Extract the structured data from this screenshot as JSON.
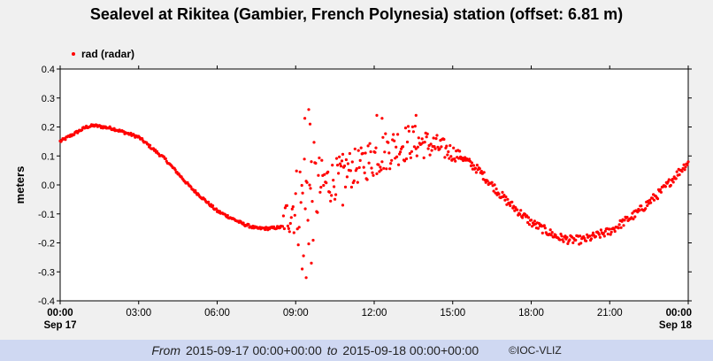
{
  "chart_data": {
    "type": "scatter",
    "title": "Sealevel at Rikitea (Gambier, French Polynesia) station (offset: 6.81 m)",
    "ylabel": "meters",
    "ylim": [
      -0.4,
      0.4
    ],
    "yticks": [
      "0.4",
      "0.3",
      "0.2",
      "0.1",
      "0.0",
      "-0.1",
      "-0.2",
      "-0.3",
      "-0.4"
    ],
    "xlim_hours": [
      0,
      24
    ],
    "xticks": [
      {
        "h": 0,
        "label": "00:00",
        "date": "Sep 17",
        "bold": true
      },
      {
        "h": 3,
        "label": "03:00"
      },
      {
        "h": 6,
        "label": "06:00"
      },
      {
        "h": 9,
        "label": "09:00"
      },
      {
        "h": 12,
        "label": "12:00"
      },
      {
        "h": 15,
        "label": "15:00"
      },
      {
        "h": 18,
        "label": "18:00"
      },
      {
        "h": 21,
        "label": "21:00"
      },
      {
        "h": 24,
        "label": "00:00",
        "date": "Sep 18",
        "bold": true
      }
    ],
    "legend": {
      "position": "top-left",
      "entry": "rad (radar)"
    },
    "grid": false,
    "series": [
      {
        "name": "rad (radar)",
        "color": "#ff0000",
        "marker": "dot",
        "interval_minutes": 2,
        "clean_curve": [
          [
            0.0,
            0.15
          ],
          [
            0.5,
            0.175
          ],
          [
            1.0,
            0.2
          ],
          [
            1.3,
            0.205
          ],
          [
            2.0,
            0.195
          ],
          [
            3.0,
            0.165
          ],
          [
            4.0,
            0.09
          ],
          [
            5.0,
            -0.01
          ],
          [
            6.0,
            -0.09
          ],
          [
            7.0,
            -0.135
          ],
          [
            7.5,
            -0.15
          ],
          [
            8.0,
            -0.15
          ],
          [
            8.5,
            -0.145
          ]
        ],
        "noisy_band": [
          [
            8.5,
            -0.13,
            0.04
          ],
          [
            9.0,
            -0.06,
            0.12
          ],
          [
            9.3,
            -0.06,
            0.24
          ],
          [
            9.6,
            -0.03,
            0.2
          ],
          [
            10.0,
            0.0,
            0.09
          ],
          [
            10.5,
            0.02,
            0.07
          ],
          [
            11.0,
            0.05,
            0.07
          ],
          [
            11.5,
            0.07,
            0.06
          ],
          [
            12.0,
            0.1,
            0.08
          ],
          [
            12.5,
            0.12,
            0.07
          ],
          [
            13.0,
            0.14,
            0.07
          ],
          [
            13.5,
            0.15,
            0.06
          ],
          [
            14.0,
            0.14,
            0.05
          ],
          [
            14.5,
            0.13,
            0.04
          ],
          [
            15.0,
            0.11,
            0.03
          ],
          [
            15.3,
            0.1,
            0.015
          ]
        ],
        "outliers": [
          [
            9.5,
            0.26
          ],
          [
            9.35,
            0.23
          ],
          [
            9.55,
            0.21
          ],
          [
            9.4,
            -0.32
          ],
          [
            9.25,
            -0.29
          ],
          [
            9.6,
            -0.27
          ],
          [
            10.8,
            -0.07
          ],
          [
            12.1,
            0.24
          ],
          [
            12.3,
            0.23
          ],
          [
            13.6,
            0.24
          ]
        ],
        "clean_curve_2": [
          [
            15.3,
            0.1
          ],
          [
            16.0,
            0.05
          ],
          [
            17.0,
            -0.05
          ],
          [
            18.0,
            -0.13
          ],
          [
            19.0,
            -0.18
          ],
          [
            19.5,
            -0.19
          ],
          [
            20.0,
            -0.19
          ],
          [
            21.0,
            -0.16
          ],
          [
            22.0,
            -0.1
          ],
          [
            23.0,
            -0.02
          ],
          [
            24.0,
            0.08
          ]
        ],
        "clean_curve_2_jitter": 0.015
      }
    ]
  },
  "footer": {
    "from_label": "From",
    "from_value": "2015-09-17 00:00+00:00",
    "to_label": "to",
    "to_value": "2015-09-18 00:00+00:00",
    "credit": "©IOC-VLIZ"
  }
}
